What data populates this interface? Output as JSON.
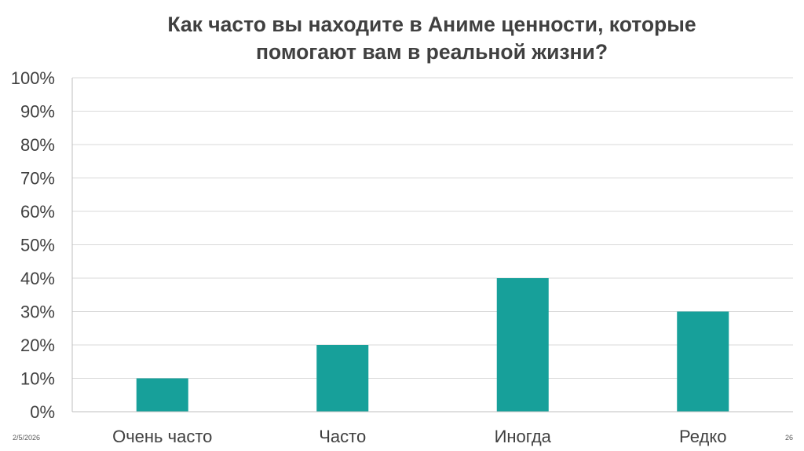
{
  "slide": {
    "title_lines": [
      "Как часто вы находите в Аниме ценности, которые",
      "помогают вам в реальной жизни?"
    ],
    "date": "2/5/2026",
    "page_number": "26"
  },
  "chart_data": {
    "type": "bar",
    "title": "Как часто вы находите в Аниме ценности, которые помогают вам в реальной жизни?",
    "categories": [
      "Очень часто",
      "Часто",
      "Иногда",
      "Редко"
    ],
    "values": [
      0.1,
      0.2,
      0.4,
      0.3
    ],
    "ylim": [
      0,
      1
    ],
    "yticks": [
      "0%",
      "10%",
      "20%",
      "30%",
      "40%",
      "50%",
      "60%",
      "70%",
      "80%",
      "90%",
      "100%"
    ],
    "xlabel": "",
    "ylabel": "",
    "grid": true,
    "legend": "none",
    "bar_color": "#17a09a",
    "grid_color": "#d9d9d9",
    "axis_color": "#bfbfbf",
    "text_color": "#404040"
  }
}
